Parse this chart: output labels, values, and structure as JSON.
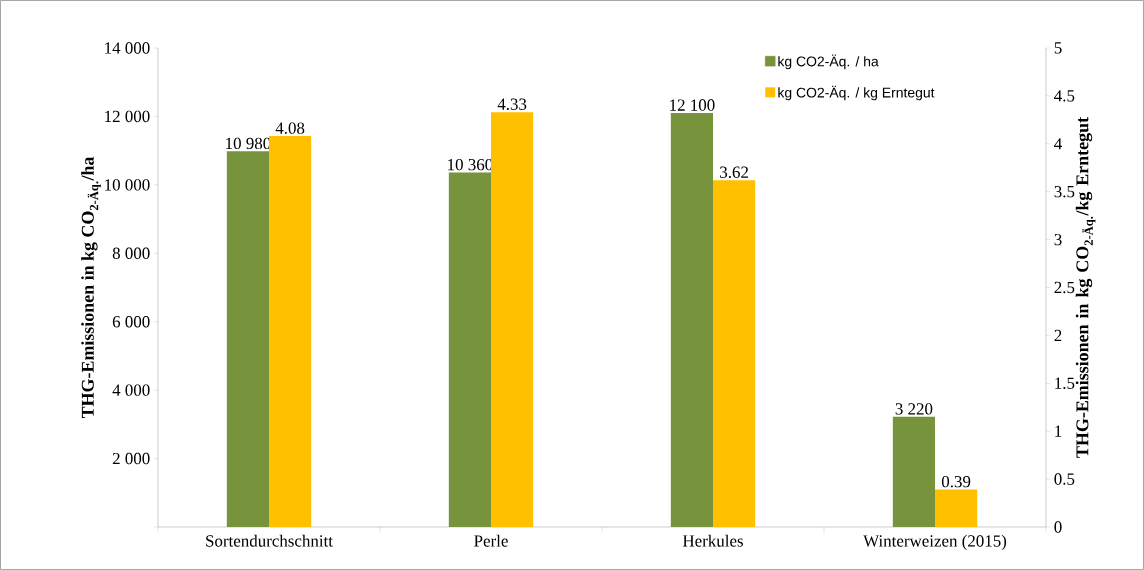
{
  "chart_data": {
    "type": "bar",
    "ylabel": "THG-Emissionen in kg CO$_{2-Äq.}$/ha",
    "y2label": "THG-Emissionen in kg CO$_{2-Äq.}$/kg Erntegut",
    "categories": [
      "Sortendurchschnitt",
      "Perle",
      "Herkules",
      "Winterweizen (2015)"
    ],
    "series": [
      {
        "name": "kg CO2-Äq. / ha",
        "color": "#77933c",
        "values": [
          10980,
          10360,
          12100,
          3220
        ],
        "value_labels": [
          "10 980",
          "10 360",
          "12 100",
          "3 220"
        ]
      },
      {
        "name": "kg CO2-Äq. / kg Erntegut",
        "color": "#ffc000",
        "axis": "y2",
        "values": [
          4.08,
          4.33,
          3.62,
          0.39
        ],
        "value_labels": [
          "4.08",
          "4.33",
          "3.62",
          "0.39"
        ]
      }
    ],
    "ylim": [
      0,
      14000
    ],
    "yticks": [
      {
        "value": 0,
        "label": null
      },
      {
        "value": 2000,
        "label": "2 000"
      },
      {
        "value": 4000,
        "label": "4 000"
      },
      {
        "value": 6000,
        "label": "6 000"
      },
      {
        "value": 8000,
        "label": "8 000"
      },
      {
        "value": 10000,
        "label": "10 000"
      },
      {
        "value": 12000,
        "label": "12 000"
      },
      {
        "value": 14000,
        "label": "14 000"
      }
    ],
    "y2lim": [
      0,
      5
    ],
    "y2ticks": [
      0,
      0.5,
      1,
      1.5,
      2,
      2.5,
      3,
      3.5,
      4,
      4.5,
      5
    ],
    "legend": "top right"
  }
}
